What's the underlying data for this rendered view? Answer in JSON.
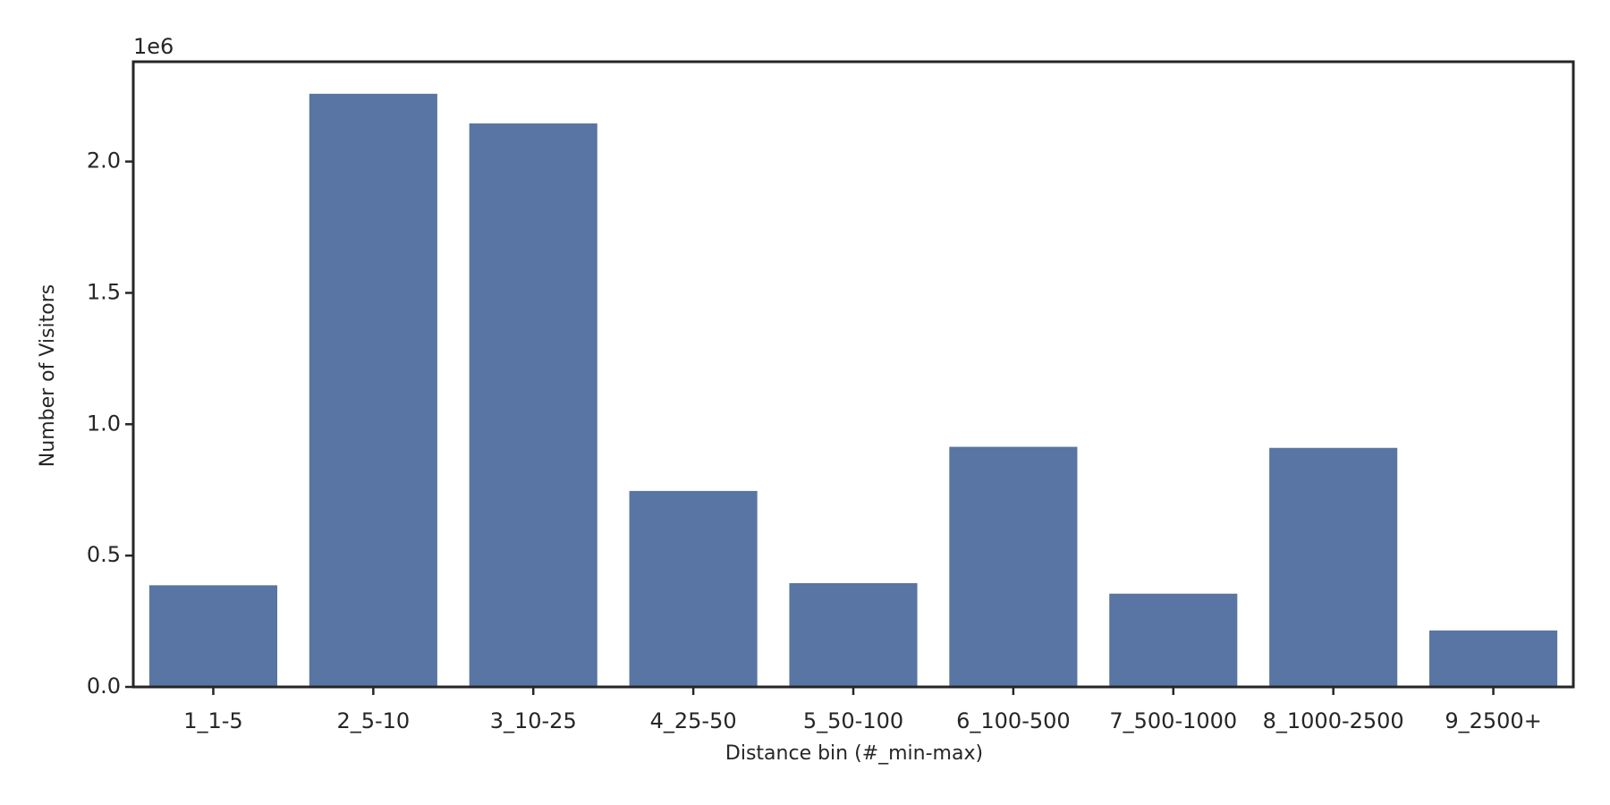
{
  "chart_data": {
    "type": "bar",
    "x_label": "Distance bin (#_min-max)",
    "y_label": "Number of Visitors",
    "y_offset_label": "1e6",
    "categories": [
      "1_1-5",
      "2_5-10",
      "3_10-25",
      "4_25-50",
      "5_50-100",
      "6_100-500",
      "7_500-1000",
      "8_1000-2500",
      "9_2500+"
    ],
    "values": [
      0.387,
      2.258,
      2.145,
      0.746,
      0.395,
      0.914,
      0.355,
      0.91,
      0.215
    ],
    "color": "#5875a4",
    "ylim": [
      0,
      2.38
    ],
    "yticks": [
      {
        "value": 0,
        "label": "0.0"
      },
      0.5,
      {
        "value": 1,
        "label": "1.0"
      },
      1.5,
      {
        "value": 2,
        "label": "2.0"
      }
    ],
    "grid": false
  }
}
